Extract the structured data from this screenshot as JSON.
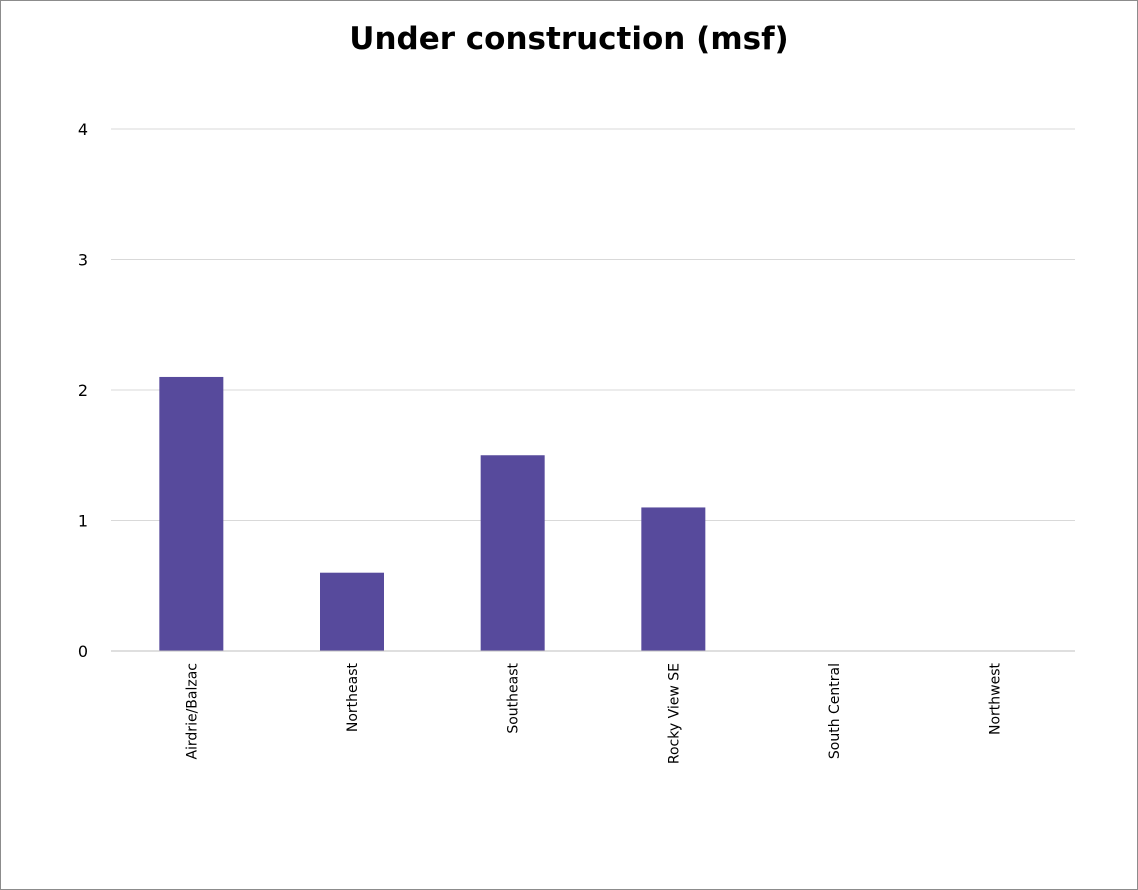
{
  "chart_data": {
    "type": "bar",
    "title": "Under construction (msf)",
    "xlabel": "",
    "ylabel": "",
    "categories": [
      "Airdrie/Balzac",
      "Northeast",
      "Southeast",
      "Rocky View SE",
      "South Central",
      "Northwest"
    ],
    "values": [
      2.1,
      0.6,
      1.5,
      1.1,
      0,
      0
    ],
    "ylim": [
      0,
      4
    ],
    "yticks": [
      0,
      1,
      2,
      3,
      4
    ],
    "grid": true,
    "legend": "none",
    "bar_color": "#574a9c",
    "grid_color": "#d9d9d9",
    "axis_color": "#bfbfbf"
  }
}
